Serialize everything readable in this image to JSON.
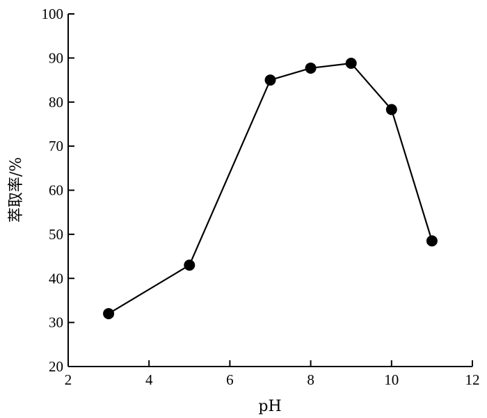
{
  "chart_data": {
    "type": "line",
    "xlabel": "pH",
    "ylabel": "萃取率/%",
    "xlim": [
      2,
      12
    ],
    "ylim": [
      20,
      100
    ],
    "xticks": [
      2,
      4,
      6,
      8,
      10,
      12
    ],
    "yticks": [
      20,
      30,
      40,
      50,
      60,
      70,
      80,
      90,
      100
    ],
    "grid": false,
    "series": [
      {
        "x": [
          3,
          5,
          7,
          8,
          9,
          10,
          11
        ],
        "y": [
          32,
          43,
          85,
          87.7,
          88.8,
          78.3,
          48.5
        ],
        "color": "#000000",
        "marker": "filled-circle"
      }
    ]
  }
}
